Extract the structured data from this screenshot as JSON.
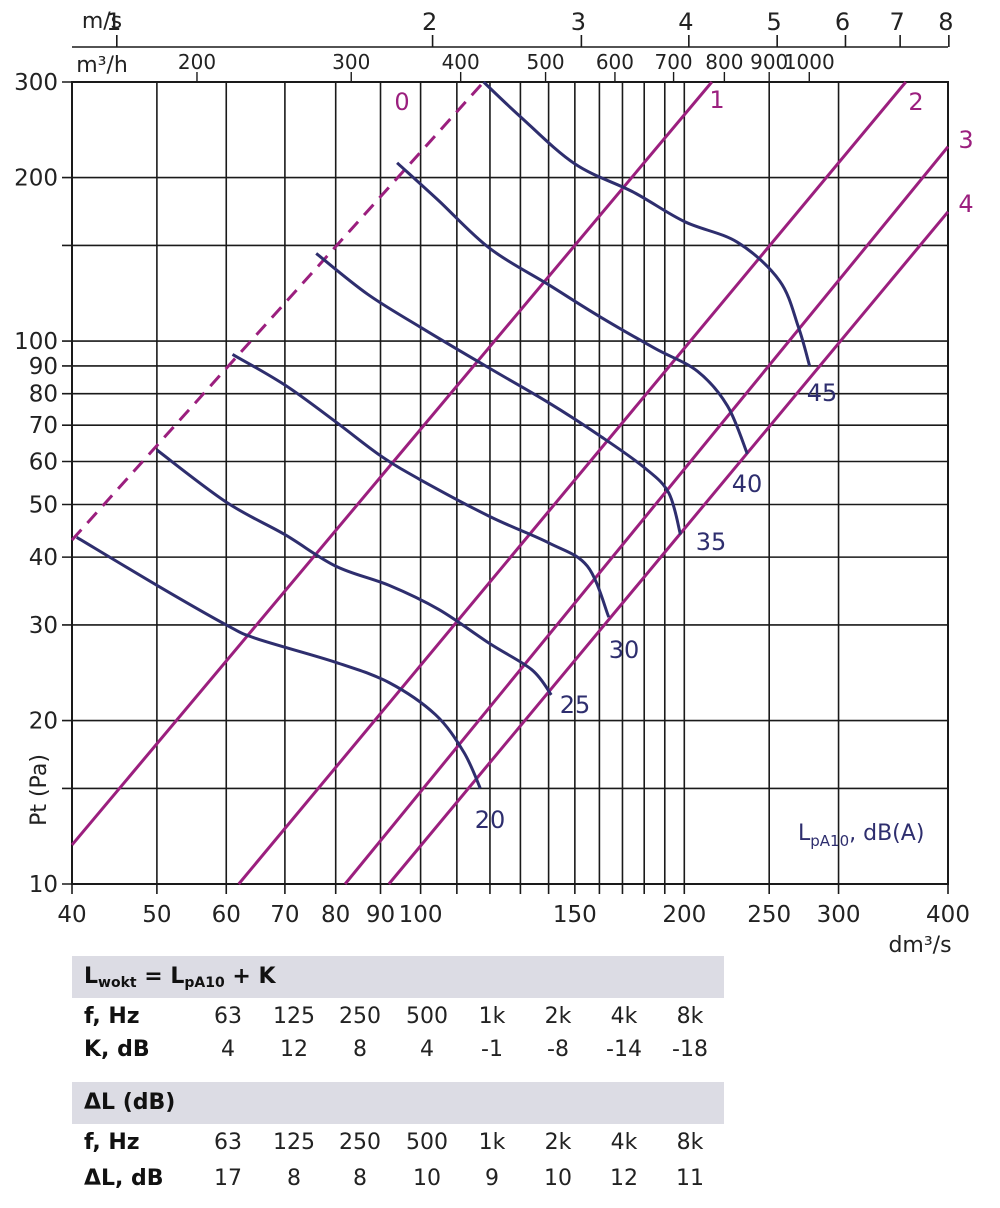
{
  "chart_data": {
    "type": "line",
    "x_scale": "log",
    "y_scale": "log",
    "xlim": [
      40,
      400
    ],
    "ylim": [
      10,
      300
    ],
    "xlabel": "dm³/s",
    "ylabel": "Pt (Pa)",
    "x_ticks": [
      40,
      50,
      60,
      70,
      80,
      90,
      100,
      150,
      200,
      250,
      300,
      400
    ],
    "y_ticks": [
      10,
      20,
      30,
      40,
      50,
      60,
      70,
      80,
      90,
      100,
      200,
      300
    ],
    "x_tick_labels": [
      "40",
      "50",
      "60",
      "70",
      "80",
      "90",
      "100",
      "150",
      "200",
      "250",
      "300",
      "400"
    ],
    "y_tick_labels": [
      "10",
      "20",
      "30",
      "40",
      "50",
      "60",
      "70",
      "80",
      "90",
      "100",
      "200",
      "300"
    ],
    "top_axis_velocity": {
      "label": "m/s",
      "ticks": [
        1,
        2,
        3,
        4,
        5,
        6,
        7,
        8
      ],
      "positions_dm3s": [
        45,
        103.2,
        152.6,
        202.4,
        255.3,
        305.5,
        352.7,
        400.9
      ]
    },
    "top_axis_flow": {
      "label": "m³/h",
      "ticks": [
        200,
        300,
        400,
        500,
        600,
        700,
        800,
        900,
        1000
      ],
      "tick_labels": [
        "200",
        "300",
        "400",
        "500",
        "600",
        "700",
        "800",
        "900",
        "1000"
      ]
    },
    "grid": true,
    "legend_label": "LpA10, dB(A)",
    "series_magenta": [
      {
        "name": "0",
        "style": "dashed",
        "points": [
          [
            40,
            43
          ],
          [
            118,
            300
          ]
        ]
      },
      {
        "name": "1",
        "points": [
          [
            40,
            11.8
          ],
          [
            215,
            300
          ]
        ]
      },
      {
        "name": "2",
        "points": [
          [
            62,
            10
          ],
          [
            358,
            300
          ]
        ]
      },
      {
        "name": "3",
        "points": [
          [
            82,
            10
          ],
          [
            400,
            228
          ]
        ]
      },
      {
        "name": "4",
        "points": [
          [
            92,
            10
          ],
          [
            400,
            173
          ]
        ]
      }
    ],
    "series_sound": [
      {
        "name": "20",
        "points": [
          [
            40.5,
            43.5
          ],
          [
            50,
            35.5
          ],
          [
            60,
            30
          ],
          [
            65,
            28.3
          ],
          [
            80,
            25.6
          ],
          [
            92,
            23.5
          ],
          [
            104,
            20.5
          ],
          [
            112,
            17.5
          ],
          [
            117,
            15
          ]
        ]
      },
      {
        "name": "25",
        "points": [
          [
            50,
            63
          ],
          [
            60,
            50.5
          ],
          [
            70,
            44
          ],
          [
            80,
            38.5
          ],
          [
            92,
            35.5
          ],
          [
            105,
            32
          ],
          [
            120,
            27.7
          ],
          [
            134,
            24.8
          ],
          [
            141,
            22.3
          ]
        ]
      },
      {
        "name": "30",
        "points": [
          [
            61,
            94.5
          ],
          [
            70,
            83
          ],
          [
            80,
            71
          ],
          [
            90,
            61.5
          ],
          [
            100,
            55.5
          ],
          [
            120,
            47.5
          ],
          [
            140,
            42.5
          ],
          [
            155,
            38.5
          ],
          [
            164,
            31
          ]
        ]
      },
      {
        "name": "35",
        "points": [
          [
            76,
            145
          ],
          [
            87,
            122
          ],
          [
            100,
            106
          ],
          [
            120,
            89
          ],
          [
            140,
            77
          ],
          [
            160,
            67
          ],
          [
            180,
            58.5
          ],
          [
            192,
            52.5
          ],
          [
            198,
            44
          ]
        ]
      },
      {
        "name": "40",
        "points": [
          [
            94,
            213
          ],
          [
            105,
            181
          ],
          [
            120,
            148
          ],
          [
            140,
            127
          ],
          [
            160,
            111
          ],
          [
            185,
            97
          ],
          [
            207,
            88
          ],
          [
            224,
            76
          ],
          [
            236,
            62
          ]
        ]
      },
      {
        "name": "45",
        "points": [
          [
            118,
            300
          ],
          [
            130,
            259
          ],
          [
            150,
            212
          ],
          [
            175,
            188
          ],
          [
            200,
            166
          ],
          [
            230,
            152
          ],
          [
            257,
            129
          ],
          [
            270,
            106
          ],
          [
            278,
            90
          ]
        ]
      }
    ]
  },
  "labels": {
    "l0": "0",
    "l1": "1",
    "l2": "2",
    "l3": "3",
    "l4": "4",
    "s20": "20",
    "s25": "25",
    "s30": "30",
    "s35": "35",
    "s40": "40",
    "s45": "45"
  },
  "table1": {
    "header_l": "L",
    "header_sub1": "wokt",
    "header_mid": " = L",
    "header_sub2": "pA10",
    "header_end": " + K",
    "row1_label": "f, Hz",
    "row2_label": "K, dB",
    "freq": [
      "63",
      "125",
      "250",
      "500",
      "1k",
      "2k",
      "4k",
      "8k"
    ],
    "values": [
      "4",
      "12",
      "8",
      "4",
      "-1",
      "-8",
      "-14",
      "-18"
    ]
  },
  "table2": {
    "header": "ΔL (dB)",
    "row1_label": "f, Hz",
    "row2_label": "ΔL, dB",
    "freq": [
      "63",
      "125",
      "250",
      "500",
      "1k",
      "2k",
      "4k",
      "8k"
    ],
    "values": [
      "17",
      "8",
      "8",
      "10",
      "9",
      "10",
      "12",
      "11"
    ]
  },
  "colors": {
    "magenta": "#9b1f7e",
    "navy": "#2e2e6e",
    "grid": "#1a1a1a",
    "band": "#dcdce4"
  }
}
